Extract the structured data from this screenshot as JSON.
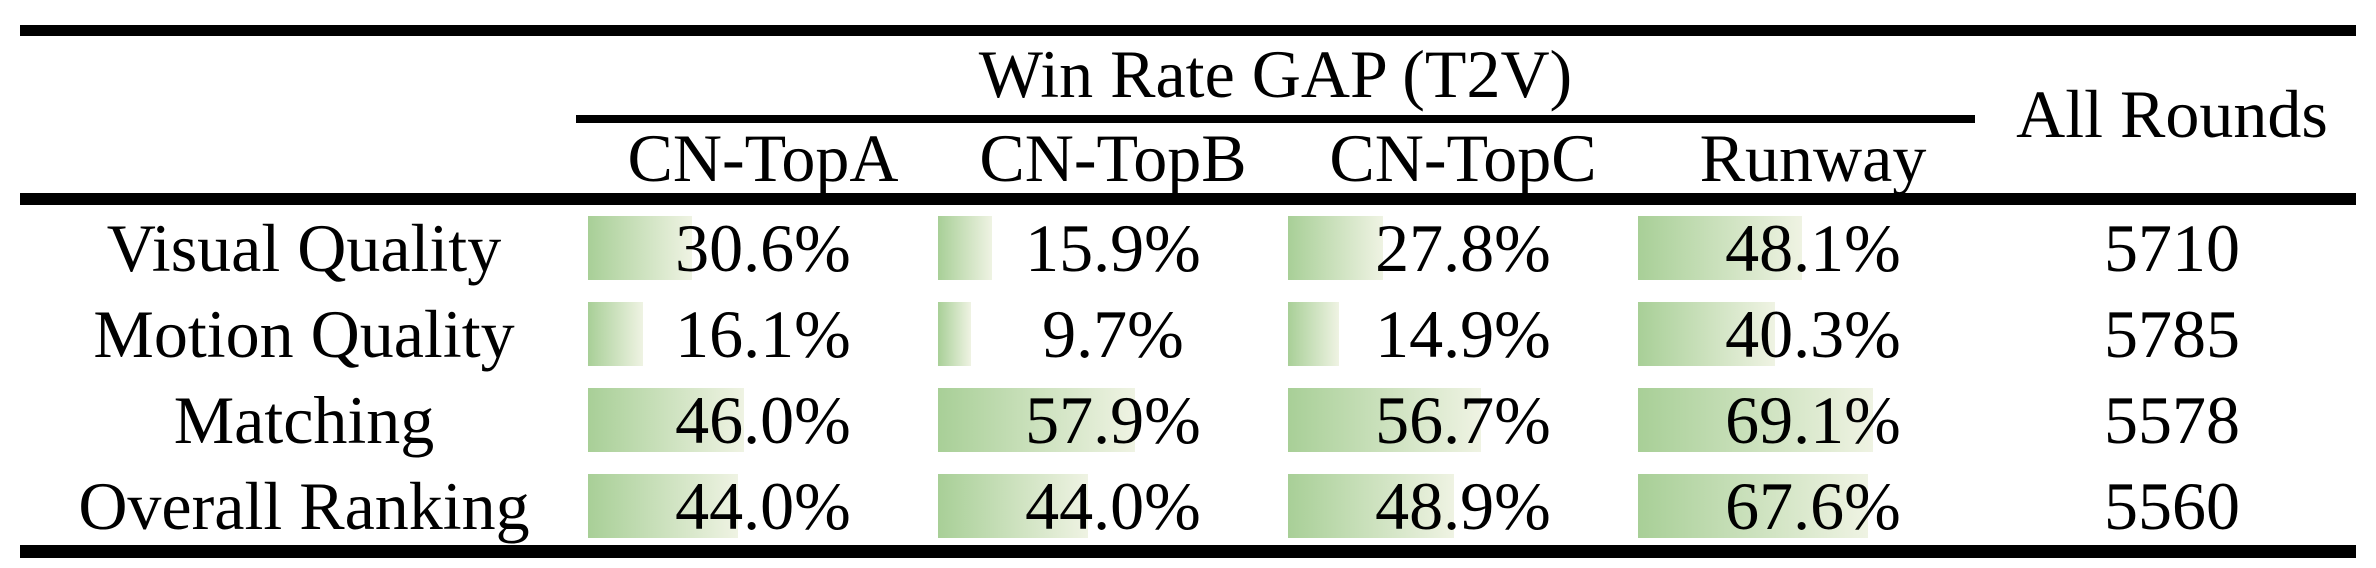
{
  "table": {
    "header": {
      "group_title": "Win Rate GAP (T2V)",
      "all_rounds_label": "All Rounds",
      "columns": [
        "CN-TopA",
        "CN-TopB",
        "CN-TopC",
        "Runway"
      ]
    },
    "rows": [
      {
        "label": "Visual Quality",
        "cells": [
          {
            "text": "30.6%",
            "value": 30.6
          },
          {
            "text": "15.9%",
            "value": 15.9
          },
          {
            "text": "27.8%",
            "value": 27.8
          },
          {
            "text": "48.1%",
            "value": 48.1
          }
        ],
        "all_rounds": "5710"
      },
      {
        "label": "Motion Quality",
        "cells": [
          {
            "text": "16.1%",
            "value": 16.1
          },
          {
            "text": "9.7%",
            "value": 9.7
          },
          {
            "text": "14.9%",
            "value": 14.9
          },
          {
            "text": "40.3%",
            "value": 40.3
          }
        ],
        "all_rounds": "5785"
      },
      {
        "label": "Matching",
        "cells": [
          {
            "text": "46.0%",
            "value": 46.0
          },
          {
            "text": "57.9%",
            "value": 57.9
          },
          {
            "text": "56.7%",
            "value": 56.7
          },
          {
            "text": "69.1%",
            "value": 69.1
          }
        ],
        "all_rounds": "5578"
      },
      {
        "label": "Overall Ranking",
        "cells": [
          {
            "text": "44.0%",
            "value": 44.0
          },
          {
            "text": "44.0%",
            "value": 44.0
          },
          {
            "text": "48.9%",
            "value": 48.9
          },
          {
            "text": "67.6%",
            "value": 67.6
          }
        ],
        "all_rounds": "5560"
      }
    ],
    "colors": {
      "bar_gradient_left": "#a8cf97",
      "bar_gradient_right": "#eff3e3",
      "rule_color": "#000000",
      "text_color": "#000000"
    }
  },
  "chart_data": {
    "type": "table",
    "title": "Win Rate GAP (T2V)",
    "row_labels": [
      "Visual Quality",
      "Motion Quality",
      "Matching",
      "Overall Ranking"
    ],
    "columns": [
      "CN-TopA",
      "CN-TopB",
      "CN-TopC",
      "Runway",
      "All Rounds"
    ],
    "series": [
      {
        "name": "CN-TopA",
        "values": [
          30.6,
          16.1,
          46.0,
          44.0
        ]
      },
      {
        "name": "CN-TopB",
        "values": [
          15.9,
          9.7,
          57.9,
          44.0
        ]
      },
      {
        "name": "CN-TopC",
        "values": [
          27.8,
          14.9,
          56.7,
          48.9
        ]
      },
      {
        "name": "Runway",
        "values": [
          48.1,
          40.3,
          69.1,
          67.6
        ]
      }
    ],
    "all_rounds": [
      5710,
      5785,
      5578,
      5560
    ],
    "databar_scale": "bar width proportional to percent of column width, green-to-white left-to-right gradient"
  }
}
